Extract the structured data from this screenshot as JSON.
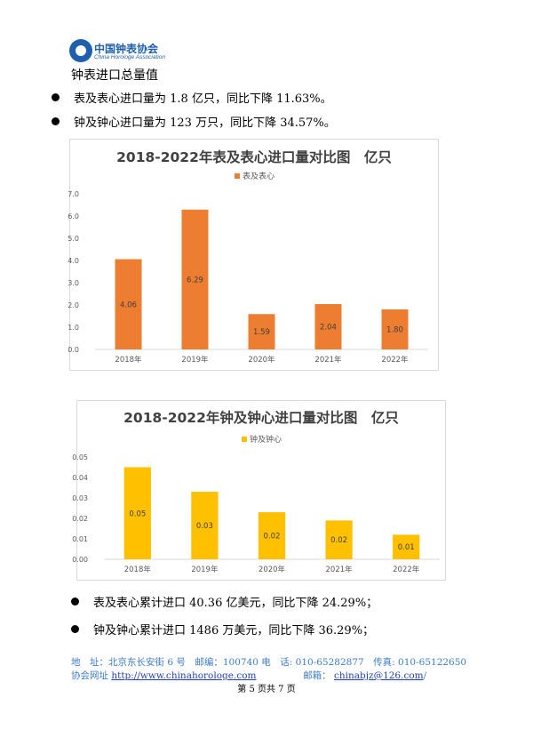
{
  "header": {
    "logo_cn": "中国钟表协会",
    "logo_en": "China Horologe Association"
  },
  "heading": "钟表进口总量值",
  "bullets_top": [
    "表及表心进口量为 1.8 亿只，同比下降 11.63%。",
    "钟及钟心进口量为 123 万只，同比下降 34.57%。"
  ],
  "chart_data": [
    {
      "type": "bar",
      "title": "2018-2022年表及表心进口量对比图　亿只",
      "categories": [
        "2018年",
        "2019年",
        "2020年",
        "2021年",
        "2022年"
      ],
      "series": [
        {
          "name": "表及表心",
          "values": [
            4.06,
            6.29,
            1.59,
            2.04,
            1.8
          ]
        }
      ],
      "data_labels": [
        "4.06",
        "6.29",
        "1.59",
        "2.04",
        "1.80"
      ],
      "y_ticks": [
        "0.0",
        "1.0",
        "2.0",
        "3.0",
        "4.0",
        "5.0",
        "6.0",
        "7.0"
      ],
      "ylim": [
        0,
        7
      ],
      "legend": "top",
      "grid": false,
      "color": "#ED7D31"
    },
    {
      "type": "bar",
      "title": "2018-2022年钟及钟心进口量对比图　亿只",
      "categories": [
        "2018年",
        "2019年",
        "2020年",
        "2021年",
        "2022年"
      ],
      "series": [
        {
          "name": "钟及钟心",
          "values": [
            0.045,
            0.033,
            0.023,
            0.019,
            0.012
          ]
        }
      ],
      "data_labels": [
        "0.05",
        "0.03",
        "0.02",
        "0.02",
        "0.01"
      ],
      "y_ticks": [
        "0.00",
        "0.01",
        "0.02",
        "0.03",
        "0.04",
        "0.05"
      ],
      "ylim": [
        0,
        0.05
      ],
      "legend": "top",
      "grid": false,
      "color": "#FFC000"
    }
  ],
  "bullets_bottom": [
    "表及表心累计进口 40.36 亿美元，同比下降 24.29%；",
    "钟及钟心累计进口 1486 万美元，同比下降 36.29%；"
  ],
  "footer": {
    "line1": "地　址：北京东长安街 6 号　邮编：100740 电　话: 010-65282877　传真: 010-65122650",
    "website_label": "协会网址",
    "website": "http://www.chinahorologe.com",
    "email_label": "邮箱：",
    "email": "chinabjz@126.com",
    "email_suffix": "/",
    "page": "第 5 页共 7 页"
  }
}
